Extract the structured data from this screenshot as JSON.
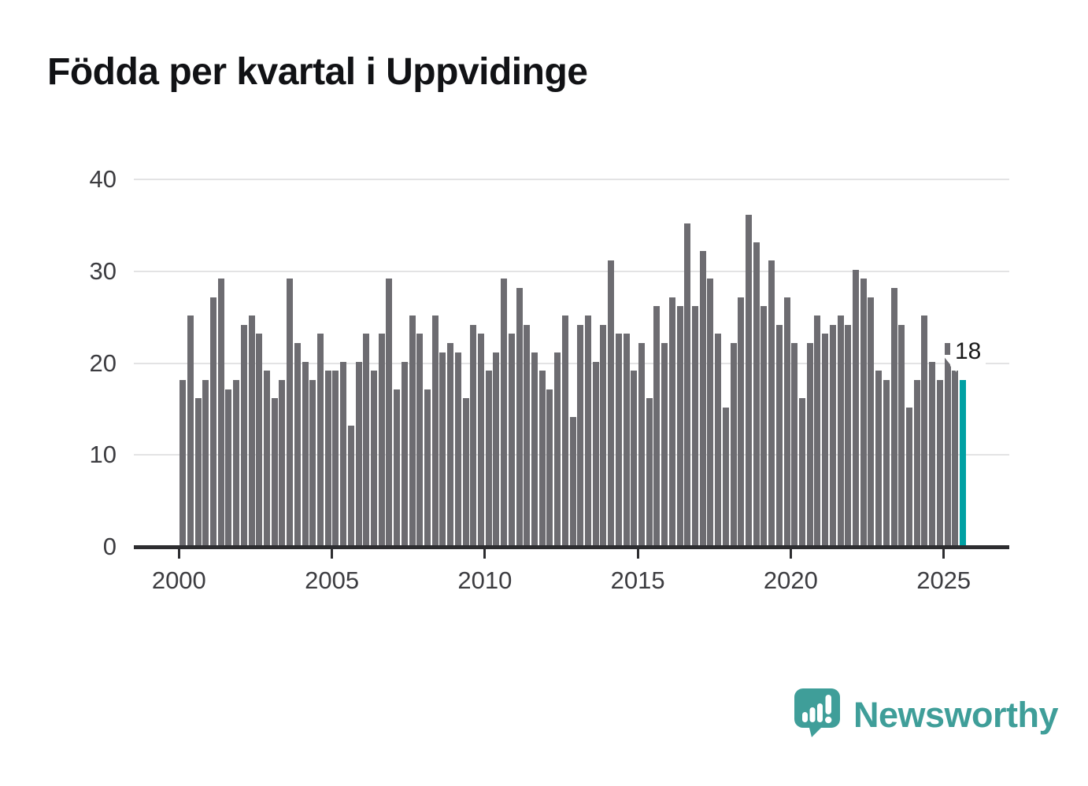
{
  "title": "Födda per kvartal i Uppvidinge",
  "chart_data": {
    "type": "bar",
    "title": "Födda per kvartal i Uppvidinge",
    "x": {
      "start": "2000-Q1",
      "end": "2025-Q3",
      "freq": "quarterly"
    },
    "xticks": [
      "2000",
      "2005",
      "2010",
      "2015",
      "2020",
      "2025"
    ],
    "yticks": [
      0,
      10,
      20,
      30,
      40
    ],
    "ylim": [
      0,
      40
    ],
    "grid": "horizontal",
    "legend": "none",
    "series": [
      {
        "name": "Födda per kvartal",
        "values": [
          18,
          25,
          16,
          18,
          27,
          29,
          17,
          18,
          24,
          25,
          23,
          19,
          16,
          18,
          29,
          22,
          20,
          18,
          23,
          19,
          19,
          20,
          13,
          20,
          23,
          19,
          23,
          29,
          17,
          20,
          25,
          23,
          17,
          25,
          21,
          22,
          21,
          16,
          24,
          23,
          19,
          21,
          29,
          23,
          28,
          24,
          21,
          19,
          17,
          21,
          25,
          14,
          24,
          25,
          20,
          24,
          31,
          23,
          23,
          19,
          22,
          16,
          26,
          22,
          27,
          26,
          35,
          26,
          32,
          29,
          23,
          15,
          22,
          27,
          36,
          33,
          26,
          31,
          24,
          27,
          22,
          16,
          22,
          25,
          23,
          24,
          25,
          24,
          30,
          29,
          27,
          19,
          18,
          28,
          24,
          15,
          18,
          25,
          20,
          18,
          22,
          19,
          18
        ]
      }
    ],
    "highlight_last": true,
    "annotation": {
      "text": "18",
      "target": "2025-Q3"
    }
  },
  "colors": {
    "bar": "#6d6c71",
    "highlight": "#00a0a3",
    "axis": "#2d2d30",
    "gridline": "#e3e3e4",
    "tick_label": "#3c3c40",
    "title": "#111215",
    "brand_teal": "#3f9e99"
  },
  "branding": {
    "wordmark": "Newsworthy"
  }
}
